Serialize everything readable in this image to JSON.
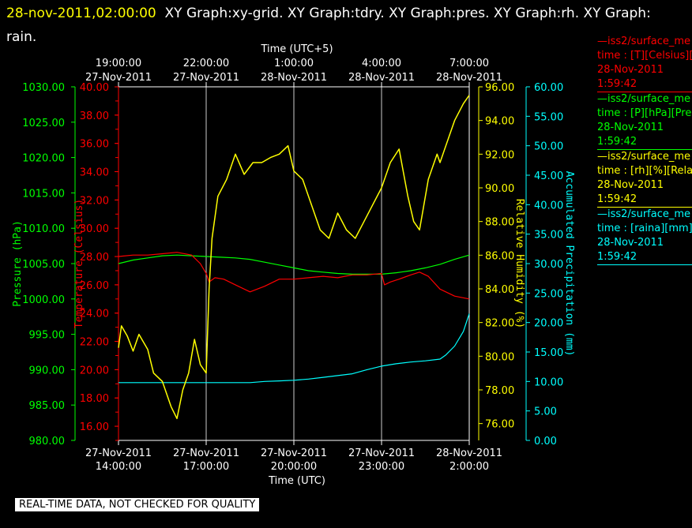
{
  "header": {
    "datetime": "28-nov-2011,02:00:00",
    "titles": "XY Graph:xy-grid.  XY Graph:tdry.  XY Graph:pres.  XY Graph:rh.  XY Graph: rain."
  },
  "notice": "REAL-TIME DATA, NOT CHECKED FOR QUALITY",
  "legend": [
    {
      "color": "#ff0000",
      "lines": [
        "—iss2/surface_me",
        "time : [T][Celsius][T",
        "28-Nov-2011",
        "1:59:42"
      ]
    },
    {
      "color": "#00ff00",
      "lines": [
        "—iss2/surface_me",
        "time : [P][hPa][Pres",
        "28-Nov-2011",
        "1:59:42"
      ]
    },
    {
      "color": "#ffff00",
      "lines": [
        "—iss2/surface_me",
        "time : [rh][%][Relati",
        "28-Nov-2011",
        "1:59:42"
      ]
    },
    {
      "color": "#00ffff",
      "lines": [
        "—iss2/surface_me",
        "time : [raina][mm][A",
        "28-Nov-2011",
        "1:59:42"
      ]
    }
  ],
  "chart_data": {
    "type": "line",
    "x_label_bottom": "Time (UTC)",
    "x_label_top": "Time (UTC+5)",
    "x_ticks_bottom": [
      {
        "x": 0,
        "date": "27-Nov-2011",
        "time": "14:00:00"
      },
      {
        "x": 3,
        "date": "27-Nov-2011",
        "time": "17:00:00"
      },
      {
        "x": 6,
        "date": "27-Nov-2011",
        "time": "20:00:00"
      },
      {
        "x": 9,
        "date": "27-Nov-2011",
        "time": "23:00:00"
      },
      {
        "x": 12,
        "date": "28-Nov-2011",
        "time": "2:00:00"
      }
    ],
    "x_ticks_top": [
      {
        "x": 0,
        "time": "19:00:00",
        "date": "27-Nov-2011"
      },
      {
        "x": 3,
        "time": "22:00:00",
        "date": "27-Nov-2011"
      },
      {
        "x": 6,
        "time": "1:00:00",
        "date": "28-Nov-2011"
      },
      {
        "x": 9,
        "time": "4:00:00",
        "date": "28-Nov-2011"
      },
      {
        "x": 12,
        "time": "7:00:00",
        "date": "28-Nov-2011"
      }
    ],
    "xlim": [
      0,
      12
    ],
    "grid": true,
    "axes": [
      {
        "id": "pres",
        "label": "Pressure (hPa)",
        "color": "#00ff00",
        "ylim": [
          980,
          1030
        ],
        "ticks": [
          "980.00",
          "985.00",
          "990.00",
          "995.00",
          "1000.00",
          "1005.00",
          "1010.00",
          "1015.00",
          "1020.00",
          "1025.00",
          "1030.00"
        ]
      },
      {
        "id": "temp",
        "label": "Temperature (Celsius)",
        "color": "#ff0000",
        "ylim": [
          15,
          40
        ],
        "ticks": [
          "16.00",
          "18.00",
          "20.00",
          "22.00",
          "24.00",
          "26.00",
          "28.00",
          "30.00",
          "32.00",
          "34.00",
          "36.00",
          "38.00",
          "40.00"
        ]
      },
      {
        "id": "rh",
        "label": "Relative Humidity (%)",
        "color": "#ffff00",
        "ylim": [
          75,
          96
        ],
        "ticks": [
          "76.00",
          "78.00",
          "80.00",
          "82.00",
          "84.00",
          "86.00",
          "88.00",
          "90.00",
          "92.00",
          "94.00",
          "96.00"
        ]
      },
      {
        "id": "rain",
        "label": "Accumulated Precipitation (mm)",
        "color": "#00ffff",
        "ylim": [
          0,
          60
        ],
        "ticks": [
          "0.00",
          "5.00",
          "10.00",
          "15.00",
          "20.00",
          "25.00",
          "30.00",
          "35.00",
          "40.00",
          "45.00",
          "50.00",
          "55.00",
          "60.00"
        ]
      }
    ],
    "series": [
      {
        "axis": "temp",
        "color": "#ff0000",
        "x": [
          0,
          0.5,
          1,
          1.5,
          2,
          2.5,
          2.8,
          3,
          3.1,
          3.3,
          3.6,
          4,
          4.5,
          5,
          5.5,
          6,
          6.5,
          7,
          7.5,
          8,
          8.5,
          9,
          9.1,
          9.3,
          9.6,
          10,
          10.3,
          10.6,
          11,
          11.5,
          12
        ],
        "y": [
          28.0,
          28.1,
          28.1,
          28.2,
          28.3,
          28.1,
          27.5,
          26.8,
          26.2,
          26.5,
          26.4,
          26.0,
          25.5,
          25.9,
          26.4,
          26.4,
          26.5,
          26.6,
          26.5,
          26.7,
          26.7,
          26.8,
          26.0,
          26.2,
          26.4,
          26.7,
          26.9,
          26.6,
          25.7,
          25.2,
          25.0
        ]
      },
      {
        "axis": "pres",
        "color": "#00ff00",
        "x": [
          0,
          0.5,
          1,
          1.5,
          2,
          2.5,
          3,
          3.5,
          4,
          4.5,
          5,
          5.5,
          6,
          6.5,
          7,
          7.5,
          8,
          8.5,
          9,
          9.5,
          10,
          10.5,
          11,
          11.5,
          12
        ],
        "y": [
          1005.0,
          1005.5,
          1005.8,
          1006.1,
          1006.2,
          1006.1,
          1006.0,
          1005.9,
          1005.8,
          1005.6,
          1005.2,
          1004.8,
          1004.4,
          1004.0,
          1003.8,
          1003.6,
          1003.5,
          1003.5,
          1003.5,
          1003.7,
          1004.0,
          1004.4,
          1004.9,
          1005.6,
          1006.2
        ]
      },
      {
        "axis": "rh",
        "color": "#ffff00",
        "x": [
          0,
          0.1,
          0.3,
          0.5,
          0.7,
          1.0,
          1.2,
          1.5,
          1.8,
          2.0,
          2.2,
          2.4,
          2.6,
          2.8,
          3.0,
          3.1,
          3.2,
          3.4,
          3.7,
          4.0,
          4.3,
          4.6,
          4.9,
          5.2,
          5.5,
          5.8,
          6.0,
          6.3,
          6.6,
          6.9,
          7.2,
          7.5,
          7.8,
          8.1,
          8.4,
          8.7,
          9.0,
          9.3,
          9.6,
          9.9,
          10.1,
          10.3,
          10.4,
          10.6,
          10.9,
          11.0,
          11.3,
          11.5,
          11.8,
          12
        ],
        "y": [
          80.5,
          81.8,
          81.2,
          80.3,
          81.3,
          80.4,
          79.0,
          78.5,
          77.0,
          76.3,
          78.0,
          79.0,
          81.0,
          79.5,
          79.0,
          84.0,
          87.0,
          89.5,
          90.5,
          92.0,
          90.8,
          91.5,
          91.5,
          91.8,
          92.0,
          92.5,
          91.0,
          90.5,
          89.0,
          87.5,
          87.0,
          88.5,
          87.5,
          87.0,
          88.0,
          89.0,
          90.0,
          91.5,
          92.3,
          89.5,
          88.0,
          87.5,
          88.5,
          90.5,
          92.0,
          91.5,
          93.0,
          94.0,
          95.0,
          95.5
        ]
      },
      {
        "axis": "rain",
        "color": "#00ffff",
        "x": [
          0,
          0.5,
          1,
          1.5,
          2,
          2.5,
          3,
          3.5,
          4,
          4.5,
          5,
          5.5,
          6,
          6.5,
          7,
          7.5,
          8,
          8.5,
          9,
          9.5,
          10,
          10.5,
          11,
          11.2,
          11.5,
          11.8,
          12
        ],
        "y": [
          9.8,
          9.8,
          9.8,
          9.8,
          9.8,
          9.8,
          9.8,
          9.8,
          9.8,
          9.8,
          10.0,
          10.1,
          10.2,
          10.4,
          10.7,
          11.0,
          11.3,
          12.0,
          12.6,
          13.0,
          13.3,
          13.5,
          13.8,
          14.5,
          16.0,
          18.5,
          21.5
        ]
      }
    ]
  }
}
